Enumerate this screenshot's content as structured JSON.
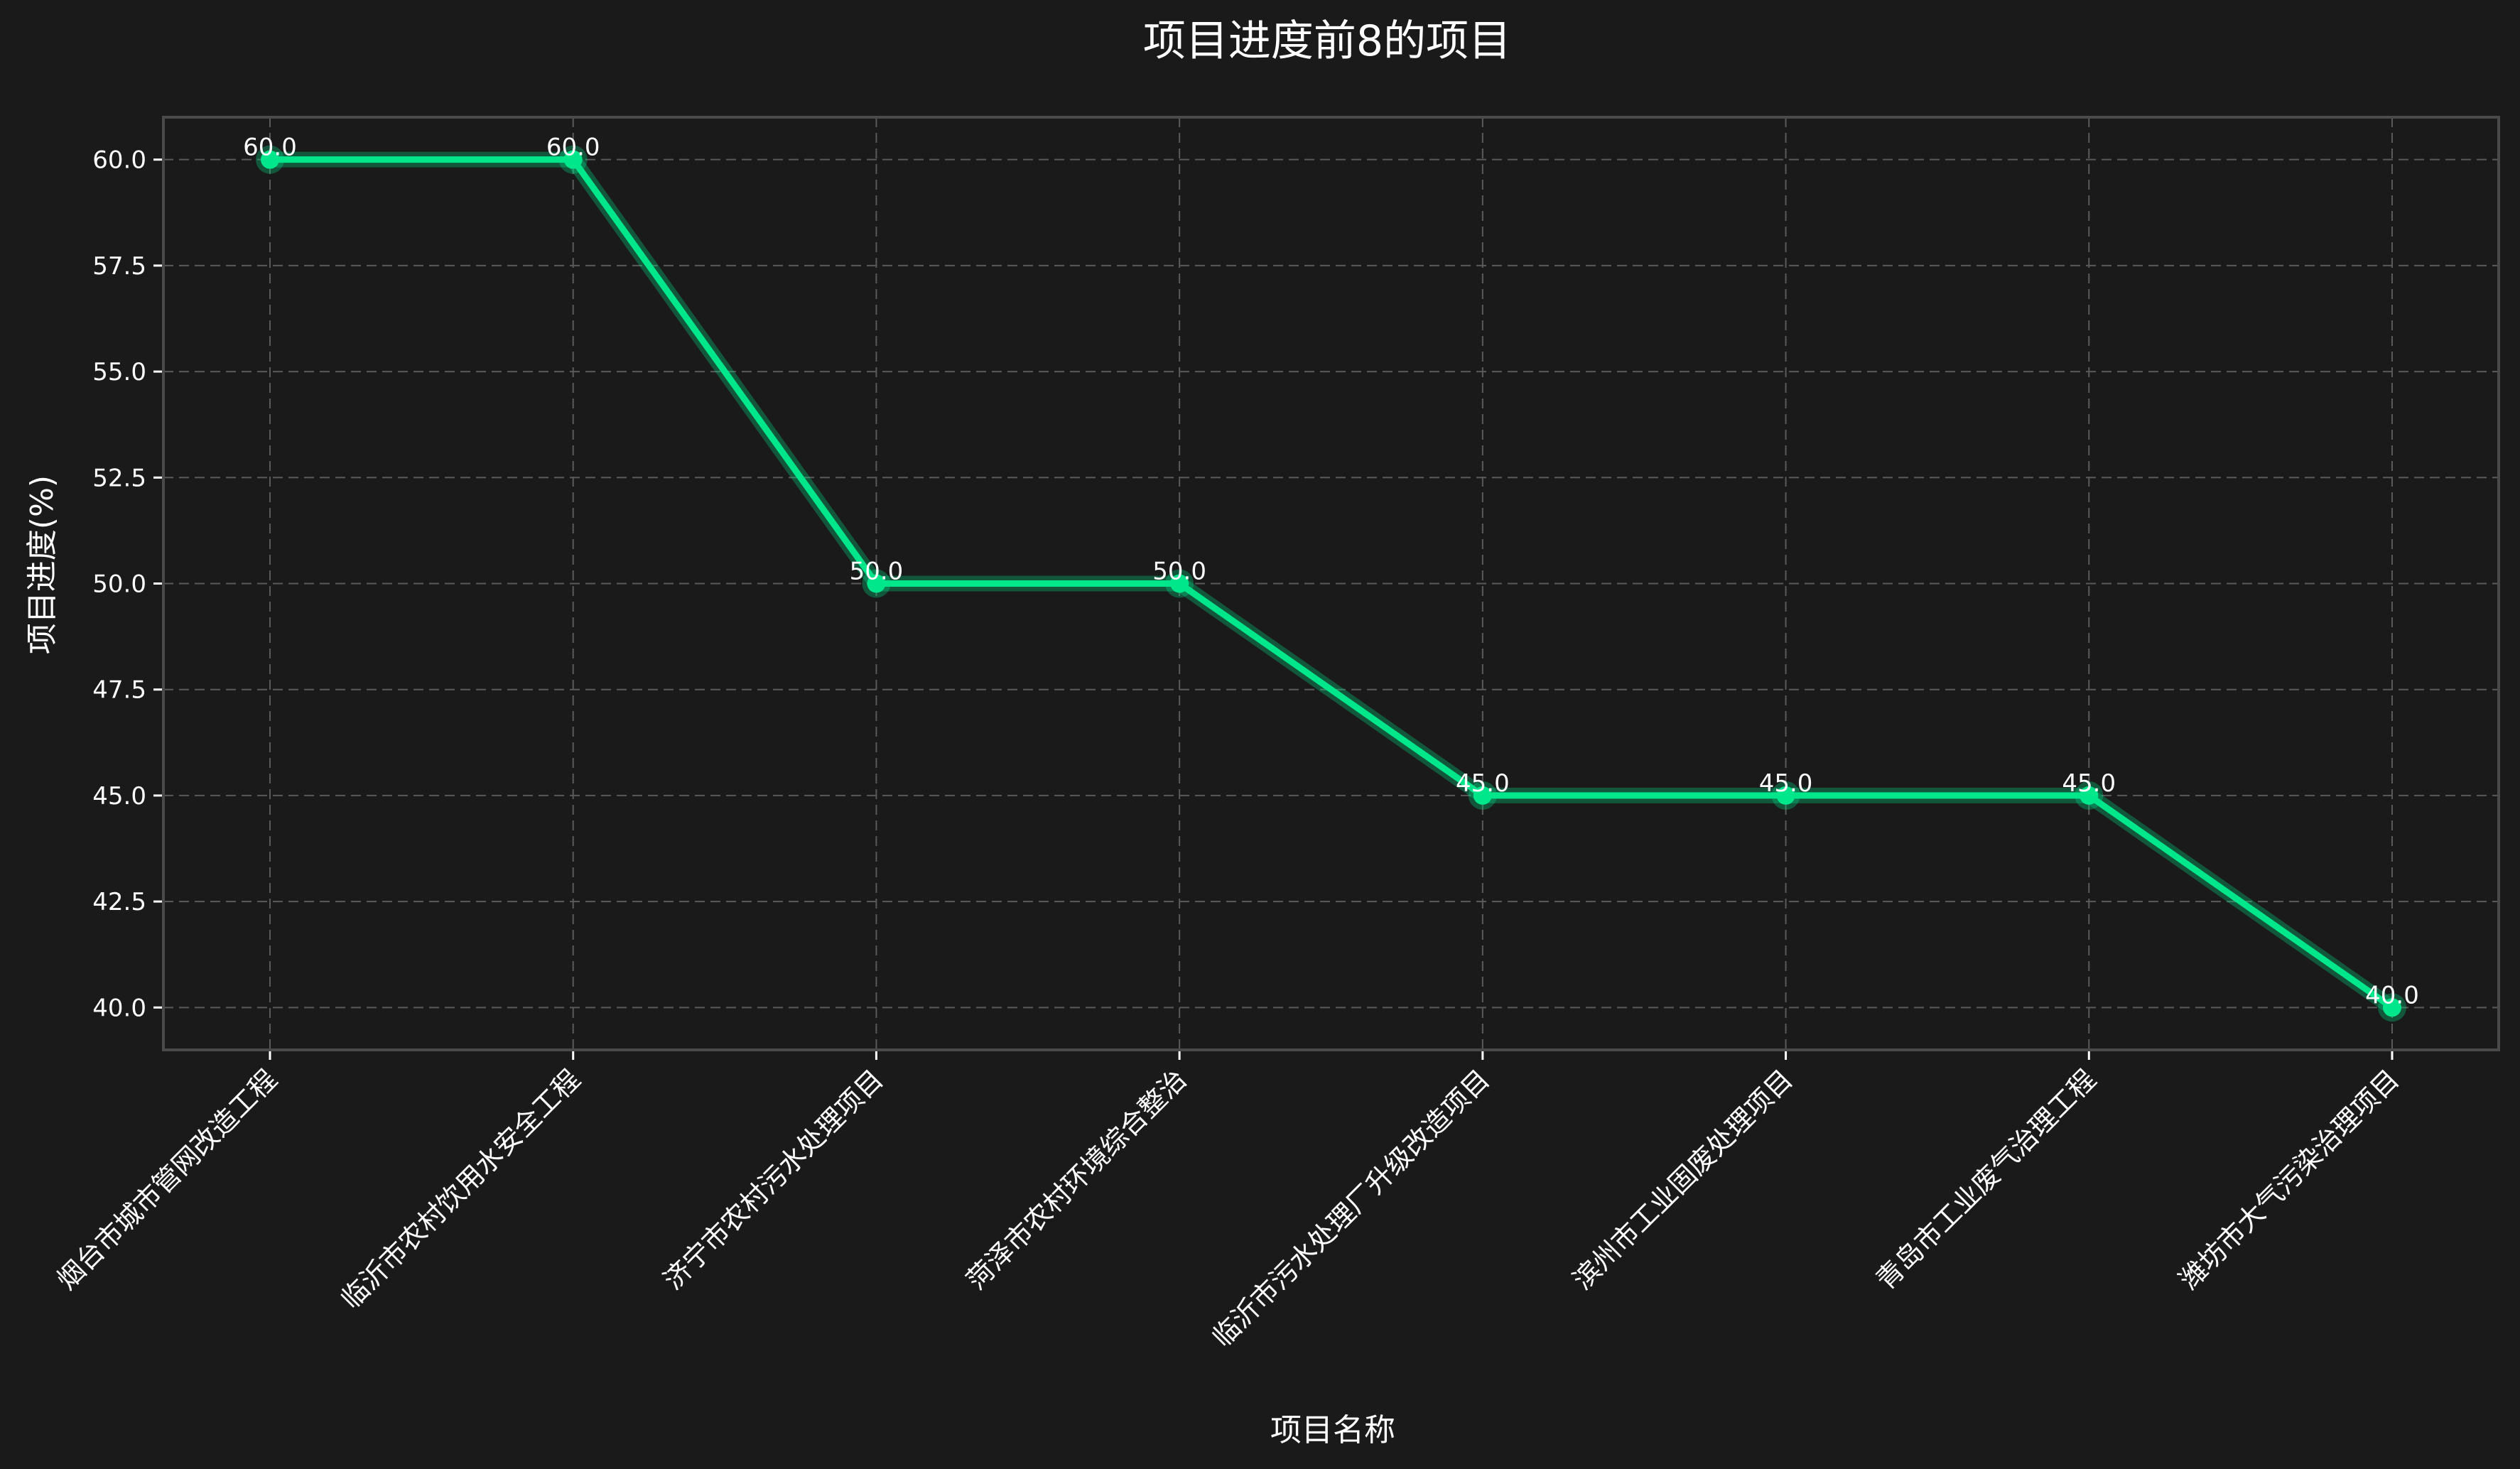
{
  "chart_data": {
    "type": "line",
    "title": "项目进度前8的项目",
    "xlabel": "项目名称",
    "ylabel": "项目进度(%)",
    "categories": [
      "烟台市城市管网改造工程",
      "临沂市农村饮用水安全工程",
      "济宁市农村污水处理项目",
      "菏泽市农村环境综合整治",
      "临沂市污水处理厂升级改造项目",
      "滨州市工业固废处理项目",
      "青岛市工业废气治理工程",
      "潍坊市大气污染治理项目"
    ],
    "series": [
      {
        "values": [
          60.0,
          60.0,
          50.0,
          50.0,
          45.0,
          45.0,
          45.0,
          40.0
        ],
        "color": "#00e68a"
      }
    ],
    "data_labels": [
      "60.0",
      "60.0",
      "50.0",
      "50.0",
      "45.0",
      "45.0",
      "45.0",
      "40.0"
    ],
    "ylim": [
      39.0,
      61.0
    ],
    "yticks": [
      40.0,
      42.5,
      45.0,
      47.5,
      50.0,
      52.5,
      55.0,
      57.5,
      60.0
    ],
    "ytick_labels": [
      "40.0",
      "42.5",
      "45.0",
      "47.5",
      "50.0",
      "52.5",
      "55.0",
      "57.5",
      "60.0"
    ],
    "grid": true,
    "background": "#1a1a1a",
    "line_color": "#00e68a"
  }
}
